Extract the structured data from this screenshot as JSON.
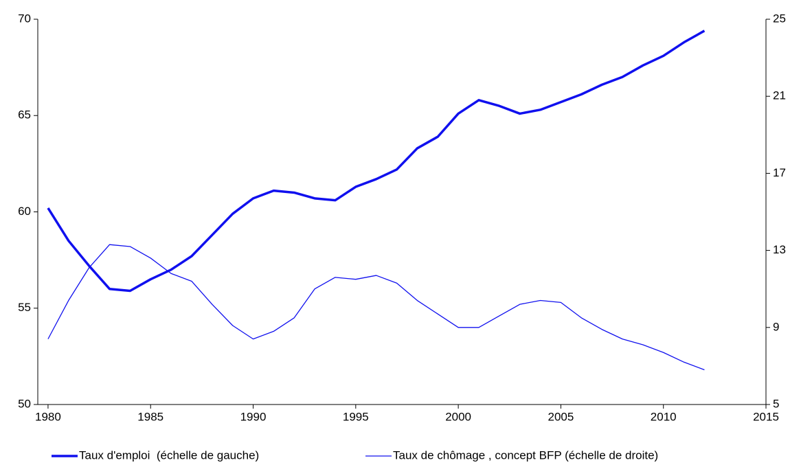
{
  "chart_data": {
    "type": "line",
    "x": [
      1980,
      1981,
      1982,
      1983,
      1984,
      1985,
      1986,
      1987,
      1988,
      1989,
      1990,
      1991,
      1992,
      1993,
      1994,
      1995,
      1996,
      1997,
      1998,
      1999,
      2000,
      2001,
      2002,
      2003,
      2004,
      2005,
      2006,
      2007,
      2008,
      2009,
      2010,
      2011,
      2012
    ],
    "series": [
      {
        "name": "Taux d'emploi  (échelle de gauche)",
        "color": "#1010ee",
        "width": 3.5,
        "values": [
          60.2,
          58.5,
          57.2,
          56.0,
          55.9,
          56.5,
          57.0,
          57.7,
          58.8,
          59.9,
          60.7,
          61.1,
          61.0,
          60.7,
          60.6,
          61.3,
          61.7,
          62.2,
          63.3,
          63.9,
          65.1,
          65.8,
          65.5,
          65.1,
          65.3,
          65.7,
          66.1,
          66.6,
          67.0,
          67.6,
          68.1,
          68.8,
          69.4
        ]
      },
      {
        "name": "Taux de chômage , concept BFP (échelle de droite)",
        "color": "#1010ee",
        "width": 1.3,
        "axis": "y2",
        "values": [
          8.4,
          10.4,
          12.1,
          13.3,
          13.2,
          12.6,
          11.8,
          11.4,
          10.2,
          9.1,
          8.4,
          8.8,
          9.5,
          11.0,
          11.6,
          11.5,
          11.7,
          11.3,
          10.4,
          9.7,
          9.0,
          9.0,
          9.6,
          10.2,
          10.4,
          10.3,
          9.5,
          8.9,
          8.4,
          8.1,
          7.7,
          7.2,
          6.8
        ]
      }
    ],
    "xlim": [
      1979.5,
      2015
    ],
    "xticks": [
      1980,
      1985,
      1990,
      1995,
      2000,
      2005,
      2010,
      2015
    ],
    "ylim": [
      50,
      70
    ],
    "yticks": [
      50,
      55,
      60,
      65,
      70
    ],
    "y2lim": [
      5,
      25
    ],
    "y2ticks": [
      5,
      9,
      13,
      17,
      21,
      25
    ],
    "grid": false,
    "legend": "bottom"
  }
}
